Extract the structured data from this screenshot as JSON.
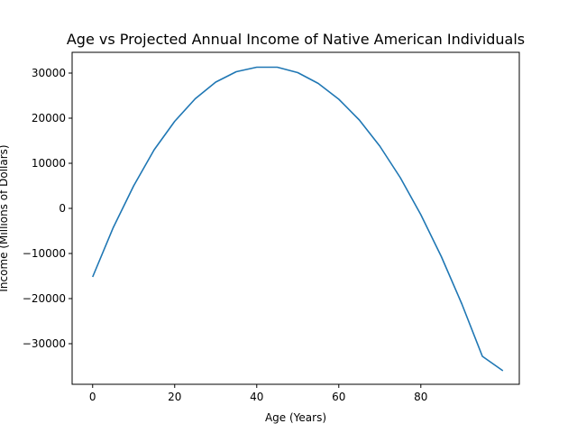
{
  "chart_data": {
    "type": "line",
    "title": "Age vs Projected Annual Income of Native American Individuals",
    "xlabel": "Age (Years)",
    "ylabel": "Income (Millions of Dollars)",
    "xlim": [
      -5,
      104
    ],
    "ylim": [
      -39000,
      34600
    ],
    "xticks": [
      0,
      20,
      40,
      60,
      80
    ],
    "yticks": [
      -30000,
      -20000,
      -10000,
      0,
      10000,
      20000,
      30000
    ],
    "grid": false,
    "legend": "none",
    "series": [
      {
        "color": "#1f77b4",
        "x": [
          0,
          5,
          10,
          15,
          20,
          25,
          30,
          35,
          40,
          45,
          50,
          55,
          60,
          65,
          70,
          75,
          80,
          85,
          90,
          95,
          100
        ],
        "y": [
          -15200,
          -4300,
          5000,
          13000,
          19300,
          24300,
          28000,
          30300,
          31300,
          31300,
          30100,
          27700,
          24200,
          19600,
          13800,
          6800,
          -1400,
          -10700,
          -21200,
          -32800,
          -36000
        ]
      }
    ]
  }
}
